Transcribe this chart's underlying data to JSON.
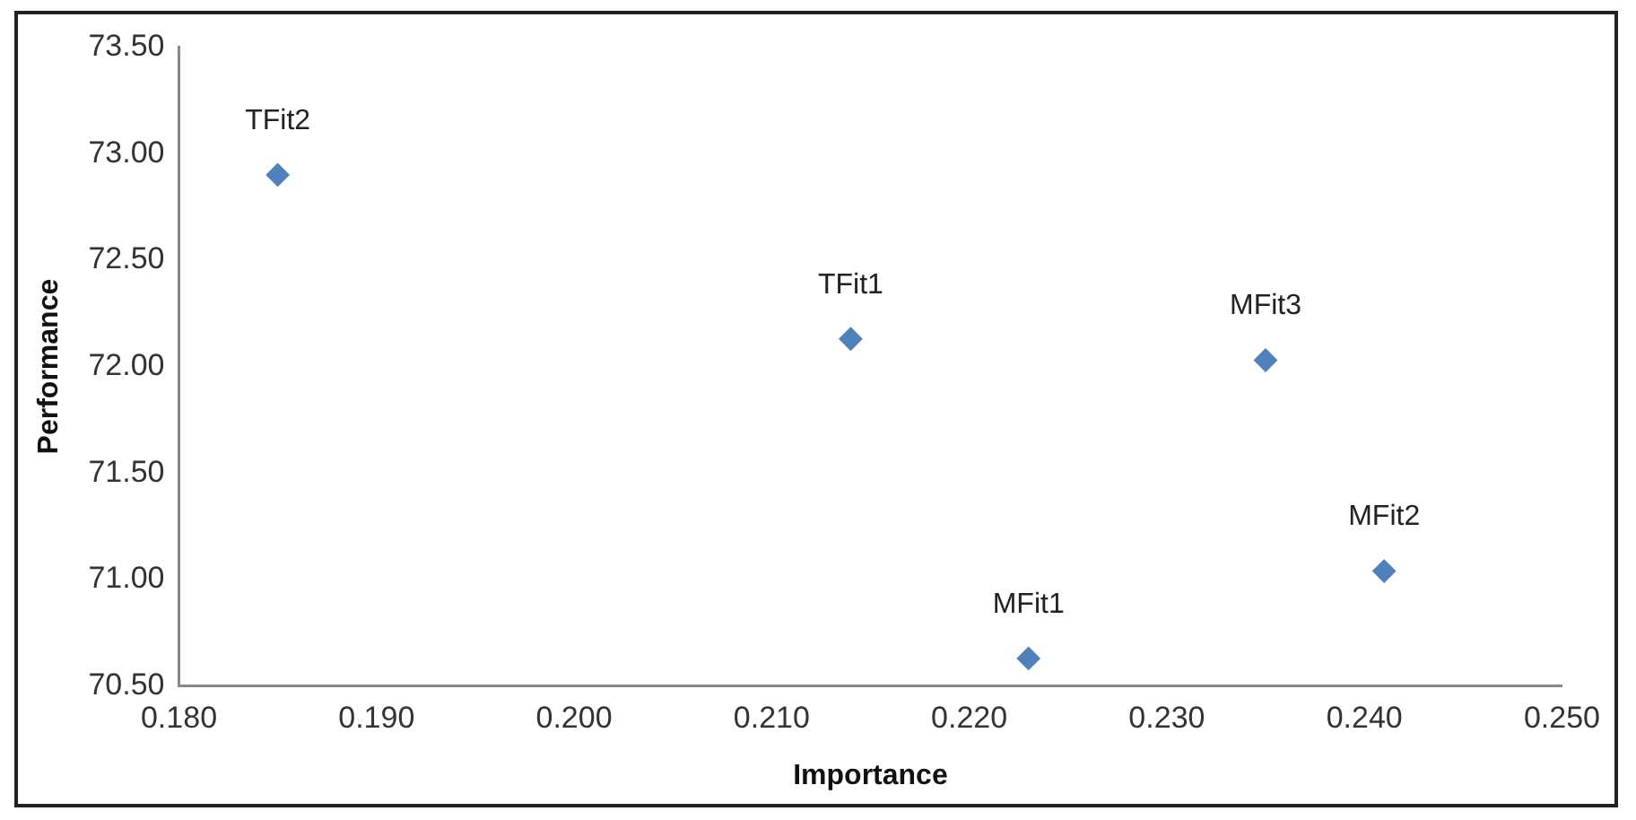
{
  "chart_data": {
    "type": "scatter",
    "xlabel": "Importance",
    "ylabel": "Performance",
    "xlim": [
      0.18,
      0.25
    ],
    "xticks": [
      {
        "value": 0.18,
        "label": "0.180"
      },
      {
        "value": 0.19,
        "label": "0.190"
      },
      {
        "value": 0.2,
        "label": "0.200"
      },
      {
        "value": 0.21,
        "label": "0.210"
      },
      {
        "value": 0.22,
        "label": "0.220"
      },
      {
        "value": 0.23,
        "label": "0.230"
      },
      {
        "value": 0.24,
        "label": "0.240"
      },
      {
        "value": 0.25,
        "label": "0.250"
      }
    ],
    "ylim": [
      70.5,
      73.5
    ],
    "yticks": [
      {
        "value": 70.5,
        "label": "70.50"
      },
      {
        "value": 71,
        "label": "71.00"
      },
      {
        "value": 71.5,
        "label": "71.50"
      },
      {
        "value": 72,
        "label": "72.00"
      },
      {
        "value": 72.5,
        "label": "72.50"
      },
      {
        "value": 73,
        "label": "73.00"
      },
      {
        "value": 73.5,
        "label": "73.50"
      }
    ],
    "grid": false,
    "legend": false,
    "marker": "diamond",
    "series": [
      {
        "color": "#4f81bd",
        "x": [
          0.185,
          0.214,
          0.223,
          0.235,
          0.241
        ],
        "values": [
          72.9,
          72.13,
          70.63,
          72.03,
          71.04
        ]
      }
    ],
    "annotations": [
      {
        "text": "TFit2",
        "x": 0.185,
        "y": 72.9
      },
      {
        "text": "TFit1",
        "x": 0.214,
        "y": 72.13
      },
      {
        "text": "MFit1",
        "x": 0.223,
        "y": 70.63
      },
      {
        "text": "MFit3",
        "x": 0.235,
        "y": 72.03
      },
      {
        "text": "MFit2",
        "x": 0.241,
        "y": 71.04
      }
    ]
  }
}
